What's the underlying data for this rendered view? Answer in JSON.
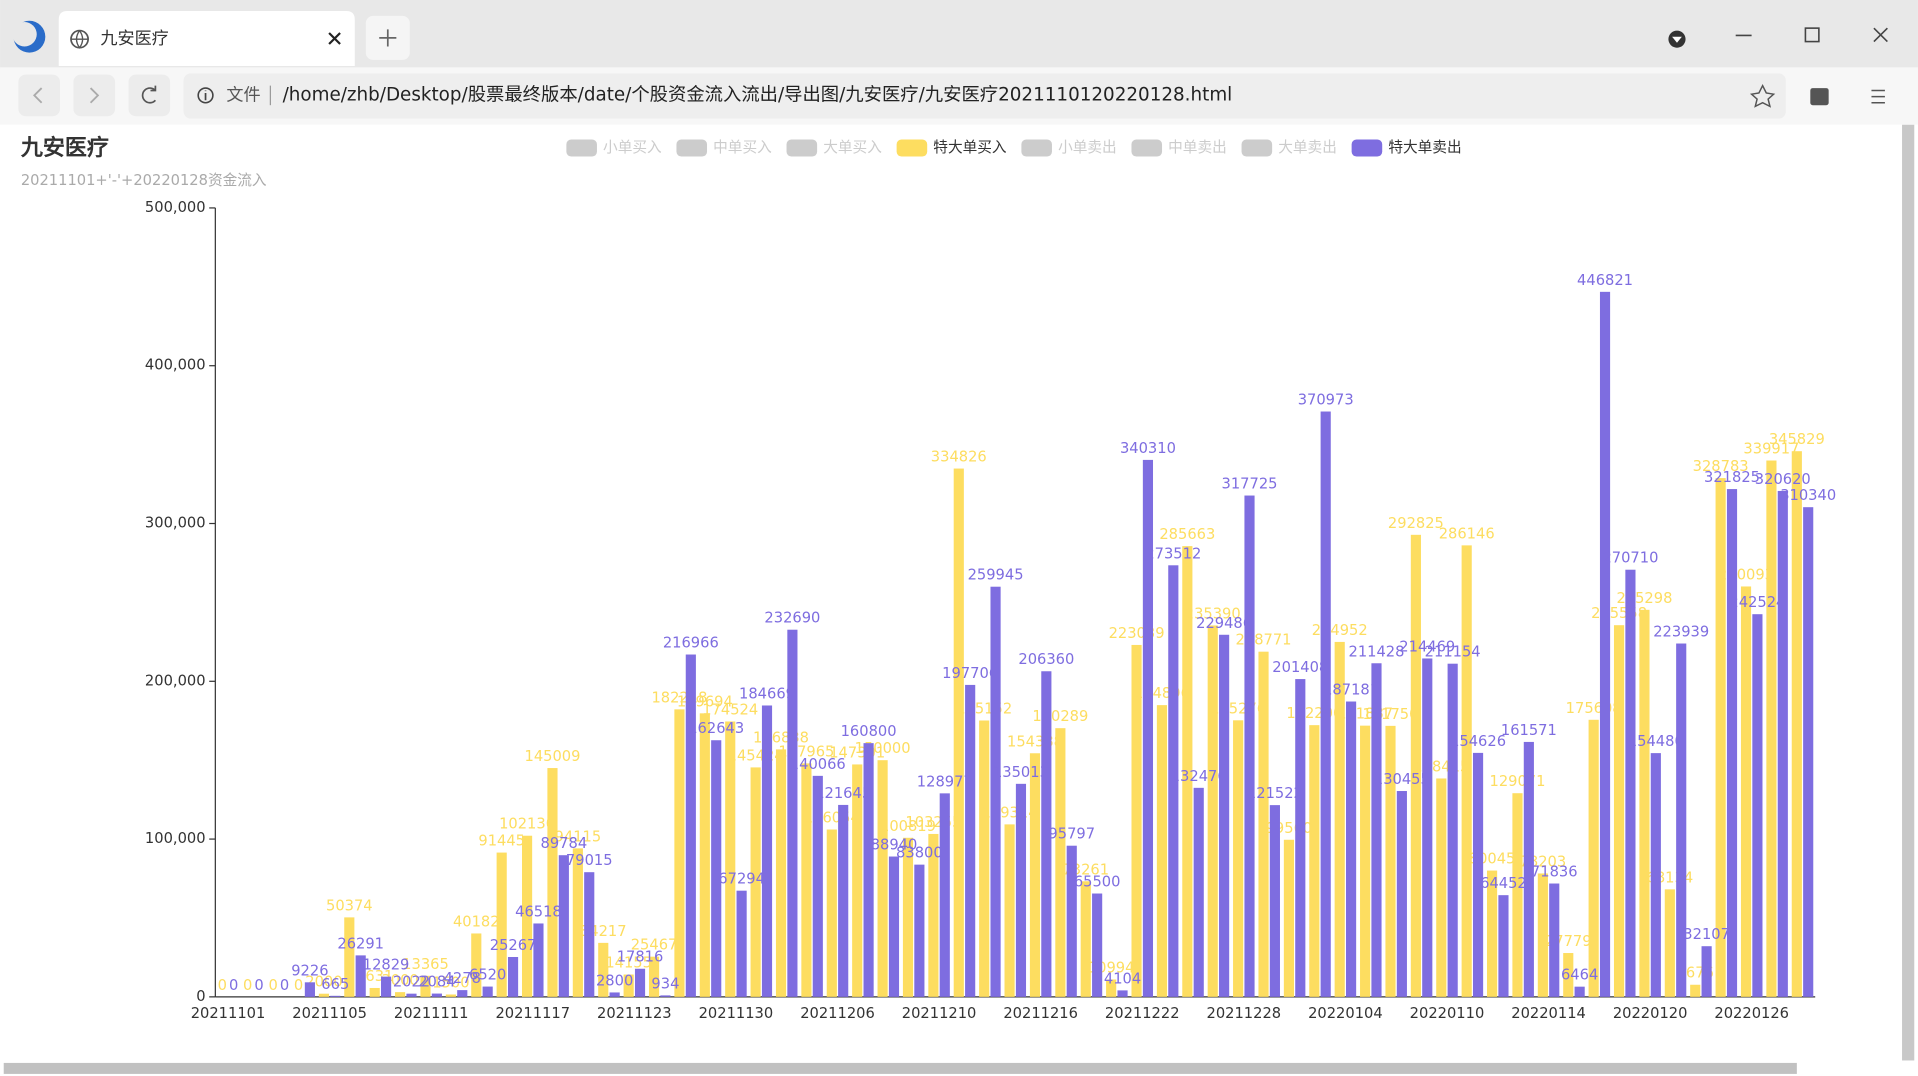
{
  "browser": {
    "tab_title": "九安医疗",
    "address_label": "文件",
    "url": "/home/zhb/Desktop/股票最终版本/date/个股资金流入流出/导出图/九安医疗/九安医疗2021110120220128.html"
  },
  "chart_data": {
    "type": "bar",
    "title": "九安医疗",
    "subtitle": "20211101+'-'+20220128资金流入",
    "categories": [
      "20211101",
      null,
      null,
      null,
      "20211105",
      null,
      null,
      null,
      "20211111",
      null,
      null,
      null,
      "20211117",
      null,
      null,
      null,
      "20211123",
      null,
      null,
      null,
      "20211130",
      null,
      null,
      null,
      "20211206",
      null,
      null,
      null,
      "20211210",
      null,
      null,
      null,
      "20211216",
      null,
      null,
      null,
      "20211222",
      null,
      null,
      null,
      "20211228",
      null,
      null,
      null,
      "20220104",
      null,
      null,
      null,
      "20220110",
      null,
      null,
      null,
      "20220114",
      null,
      null,
      null,
      "20220120",
      null,
      null,
      null,
      "20220126",
      null,
      null
    ],
    "series": [
      {
        "name": "小单买入",
        "selected": false
      },
      {
        "name": "中单买入",
        "selected": false
      },
      {
        "name": "大单买入",
        "selected": false
      },
      {
        "name": "特大单买入",
        "selected": true,
        "color": "#fddd60",
        "values": [
          0,
          0,
          0,
          0,
          2000,
          50374,
          5631,
          3000,
          13365,
          1500,
          40182,
          91445,
          102130,
          145009,
          94115,
          34217,
          14155,
          25467,
          182218,
          179694,
          174524,
          145424,
          156838,
          147965,
          106054,
          147301,
          150000,
          100819,
          103255,
          334826,
          175152,
          109314,
          154388,
          170289,
          73261,
          10994,
          223039,
          184896,
          285663,
          235390,
          175276,
          218771,
          99560,
          172200,
          224952,
          171887,
          171750,
          292825,
          138415,
          286146,
          80045,
          129071,
          78203,
          27779,
          175608,
          235558,
          245298,
          68134,
          7676,
          328783,
          260093,
          339917,
          345829
        ]
      },
      {
        "name": "小单卖出",
        "selected": false
      },
      {
        "name": "中单卖出",
        "selected": false
      },
      {
        "name": "大单卖出",
        "selected": false
      },
      {
        "name": "特大单卖出",
        "selected": true,
        "color": "#7e6de0",
        "values": [
          0,
          0,
          0,
          9226,
          665,
          26291,
          12829,
          2022,
          2084,
          4278,
          6520,
          25267,
          46518,
          89784,
          79015,
          2800,
          17816,
          934,
          216966,
          162643,
          67294,
          184669,
          232690,
          140066,
          121645,
          160800,
          88940,
          83800,
          128977,
          197706,
          259945,
          135013,
          206360,
          95797,
          65500,
          4104,
          340310,
          273512,
          132476,
          229486,
          317725,
          121522,
          201408,
          370973,
          187181,
          211428,
          130455,
          214469,
          211154,
          154626,
          64452,
          161571,
          71836,
          6464,
          446821,
          270710,
          154480,
          223939,
          32107,
          321825,
          242524,
          320620,
          310340
        ]
      }
    ],
    "ylim": [
      0,
      500000
    ],
    "yticks": [
      0,
      {
        "value": 100000,
        "label": "100,000"
      },
      {
        "value": 200000,
        "label": "200,000"
      },
      {
        "value": 300000,
        "label": "300,000"
      },
      {
        "value": 400000,
        "label": "400,000"
      },
      {
        "value": 500000,
        "label": "500,000"
      }
    ]
  }
}
